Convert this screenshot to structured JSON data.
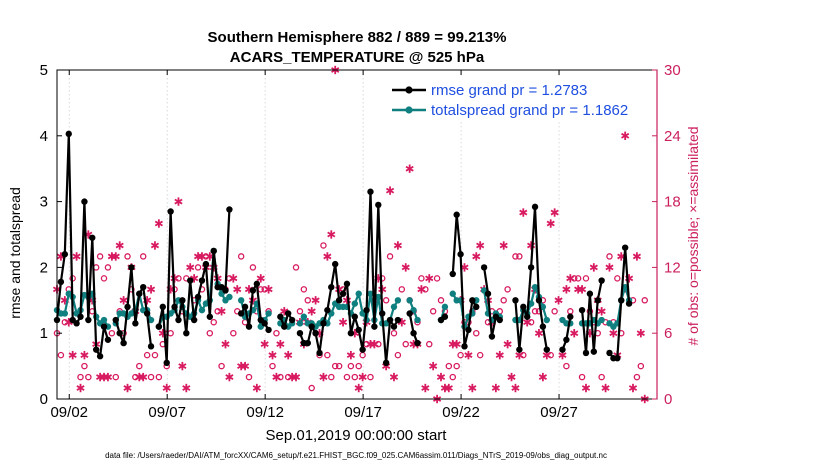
{
  "chart_data": {
    "type": "line",
    "title_line1": "Southern Hemisphere 882 / 889 = 99.213%",
    "title_line2": "ACARS_TEMPERATURE @ 525 hPa",
    "ylabel": "rmse and totalspread",
    "ylabel_right": "# of obs: o=possible; ×=assimilated",
    "xlabel": "Sep.01,2019 00:00:00 start",
    "footer": "data file: /Users/raeder/DAI/ATM_forcXX/CAM6_setup/f.e21.FHIST_BGC.f09_025.CAM6assim.011/Diags_NTrS_2019-09/obs_diag_output.nc",
    "ylim": [
      0,
      5
    ],
    "ylim_right": [
      0,
      30
    ],
    "xlim": [
      1.375,
      32.0
    ],
    "x_ticks": [
      {
        "day": 2,
        "label": "09/02"
      },
      {
        "day": 7,
        "label": "09/07"
      },
      {
        "day": 12,
        "label": "09/12"
      },
      {
        "day": 17,
        "label": "09/17"
      },
      {
        "day": 22,
        "label": "09/22"
      },
      {
        "day": 27,
        "label": "09/27"
      }
    ],
    "y_ticks": [
      "0",
      "1",
      "2",
      "3",
      "4",
      "5"
    ],
    "y_ticks_right": [
      "0",
      "6",
      "12",
      "18",
      "24",
      "30"
    ],
    "colors": {
      "rmse": "#000000",
      "spread": "#0f7f7f",
      "obs": "#d81b60",
      "legend_text": "#1f4fe0",
      "right_axis": "#cc1f5e"
    },
    "series": [
      {
        "name": "rmse grand pr = 1.2783",
        "values": [
          1.2,
          1.78,
          2.2,
          4.03,
          1.2,
          1.15,
          1.25,
          3.0,
          1.2,
          2.45,
          0.75,
          0.65,
          1.1,
          0.9,
          null,
          1.2,
          1.0,
          0.85,
          1.4,
          2.0,
          1.15,
          1.6,
          1.7,
          1.3,
          0.8,
          null,
          1.1,
          1.4,
          0.55,
          2.85,
          1.4,
          1.2,
          1.5,
          1.0,
          1.8,
          1.2,
          1.55,
          1.8,
          2.05,
          1.25,
          2.25,
          1.7,
          1.7,
          1.65,
          2.88,
          null,
          null,
          1.3,
          1.4,
          1.1,
          1.65,
          1.75,
          1.2,
          1.15,
          1.05,
          null,
          null,
          1.25,
          1.1,
          1.3,
          1.2,
          null,
          1.0,
          0.85,
          0.85,
          1.1,
          1.0,
          0.7,
          1.15,
          1.35,
          1.7,
          2.05,
          1.5,
          1.6,
          1.75,
          1.0,
          1.25,
          1.05,
          0.75,
          1.35,
          3.15,
          1.1,
          2.95,
          1.3,
          0.55,
          1.2,
          1.1,
          1.2,
          null,
          null,
          1.3,
          1.0,
          0.85,
          null,
          null,
          null,
          null,
          null,
          1.2,
          1.25,
          null,
          1.9,
          2.8,
          2.2,
          0.8,
          1.05,
          1.5,
          1.4,
          null,
          2.0,
          1.6,
          0.95,
          1.25,
          1.2,
          null,
          null,
          null,
          1.5,
          0.75,
          1.4,
          1.25,
          2.0,
          2.92,
          1.5,
          1.1,
          0.75,
          null,
          null,
          null,
          0.75,
          0.9,
          1.25,
          null,
          null,
          1.35,
          0.7,
          1.6,
          0.72,
          1.5,
          1.8,
          null,
          0.7,
          0.62,
          0.62,
          1.5,
          2.3,
          1.45
        ]
      },
      {
        "name": "totalspread grand pr = 1.1862",
        "values": [
          1.35,
          1.3,
          1.3,
          1.6,
          1.55,
          1.3,
          1.35,
          1.58,
          1.55,
          1.6,
          1.25,
          1.15,
          1.2,
          1.1,
          null,
          1.15,
          1.3,
          1.3,
          1.25,
          1.3,
          1.35,
          1.6,
          1.35,
          1.35,
          1.2,
          null,
          1.1,
          1.25,
          1.25,
          1.3,
          1.35,
          1.5,
          1.4,
          1.3,
          1.25,
          1.3,
          1.5,
          1.35,
          1.45,
          1.5,
          2.25,
          1.75,
          1.6,
          1.5,
          1.55,
          null,
          null,
          1.5,
          1.25,
          1.3,
          1.35,
          1.45,
          1.1,
          1.2,
          1.3,
          null,
          null,
          1.15,
          1.2,
          1.1,
          1.15,
          null,
          1.15,
          1.25,
          1.15,
          1.15,
          1.1,
          1.15,
          1.2,
          1.15,
          1.3,
          1.45,
          1.4,
          1.4,
          1.4,
          1.3,
          1.45,
          1.6,
          1.3,
          1.2,
          1.6,
          1.2,
          1.55,
          1.15,
          1.15,
          1.2,
          1.4,
          1.5,
          null,
          null,
          1.5,
          1.35,
          1.2,
          null,
          null,
          null,
          null,
          null,
          1.2,
          1.4,
          null,
          1.6,
          1.5,
          1.5,
          1.1,
          1.25,
          1.3,
          1.5,
          null,
          1.65,
          1.3,
          1.2,
          1.3,
          1.25,
          null,
          null,
          null,
          1.2,
          1.2,
          1.35,
          1.3,
          1.45,
          1.7,
          1.55,
          1.4,
          1.2,
          null,
          null,
          null,
          1.2,
          1.15,
          1.15,
          null,
          null,
          1.15,
          1.15,
          1.15,
          1.2,
          1.15,
          1.2,
          null,
          1.15,
          1.1,
          1.15,
          1.5,
          1.7,
          1.5
        ]
      }
    ],
    "obs_assimilated": [
      10,
      13,
      9,
      7,
      4,
      13,
      1,
      4,
      15,
      9,
      5,
      2,
      2,
      2,
      13,
      13,
      14,
      9,
      1,
      12,
      8,
      2,
      2,
      9,
      10,
      14,
      16,
      6,
      1,
      10,
      11,
      18,
      3,
      1,
      12,
      11,
      13,
      13,
      12,
      13,
      12,
      11,
      8,
      5,
      2,
      11,
      10,
      3,
      3,
      10,
      9,
      1,
      11,
      5,
      10,
      4,
      2,
      5,
      8,
      4,
      2,
      2,
      7,
      5,
      7,
      8,
      9,
      6,
      2,
      13,
      15,
      30,
      10,
      7,
      9,
      4,
      6,
      1,
      2,
      7,
      5,
      5,
      11,
      10,
      3,
      19,
      2,
      14,
      7,
      12,
      21,
      5,
      5,
      10,
      1,
      11,
      3,
      0,
      2,
      1,
      1,
      5,
      5,
      9,
      12,
      4,
      1,
      13,
      14,
      10,
      9,
      7,
      1,
      4,
      14,
      5,
      2,
      1,
      4,
      17,
      7,
      14,
      10,
      6,
      2,
      4,
      16,
      17,
      9,
      4,
      10,
      11,
      6,
      10,
      10,
      1,
      6,
      12,
      9,
      8,
      1,
      12,
      6,
      4,
      13,
      24,
      11,
      1,
      13,
      6,
      0
    ],
    "obs_possible": [
      6,
      4,
      7,
      10,
      11,
      13,
      2,
      3,
      2,
      8,
      12,
      13,
      11,
      12,
      6,
      2,
      8,
      6,
      13,
      10,
      2,
      3,
      13,
      4,
      2,
      4,
      2,
      5,
      3,
      6,
      10,
      11,
      8,
      11,
      12,
      9,
      12,
      10,
      13,
      6,
      7,
      8,
      3,
      10,
      11,
      6,
      8,
      13,
      7,
      2,
      12,
      8,
      10,
      10,
      8,
      3,
      6,
      2,
      8,
      2,
      2,
      12,
      8,
      10,
      9,
      1,
      6,
      4,
      14,
      4,
      2,
      3,
      3,
      10,
      2,
      3,
      2,
      3,
      4,
      5,
      2,
      9,
      5,
      11,
      9,
      13,
      6,
      4,
      10,
      5,
      9,
      8,
      7,
      11,
      10,
      5,
      8,
      11,
      9,
      8,
      3,
      2,
      3,
      4,
      7,
      7,
      8,
      6,
      4,
      10,
      7,
      8,
      1,
      8,
      9,
      10,
      2,
      13,
      13,
      4,
      7,
      7,
      8,
      8,
      9,
      4,
      4,
      8,
      9,
      4,
      3,
      8,
      11,
      11,
      2,
      11,
      8,
      7,
      6,
      2,
      7,
      13,
      7,
      11,
      6,
      10,
      11,
      9,
      2,
      3,
      9
    ]
  },
  "legend": {
    "rmse_label": "rmse grand pr = 1.2783",
    "spread_label": "totalspread grand pr = 1.1862"
  }
}
